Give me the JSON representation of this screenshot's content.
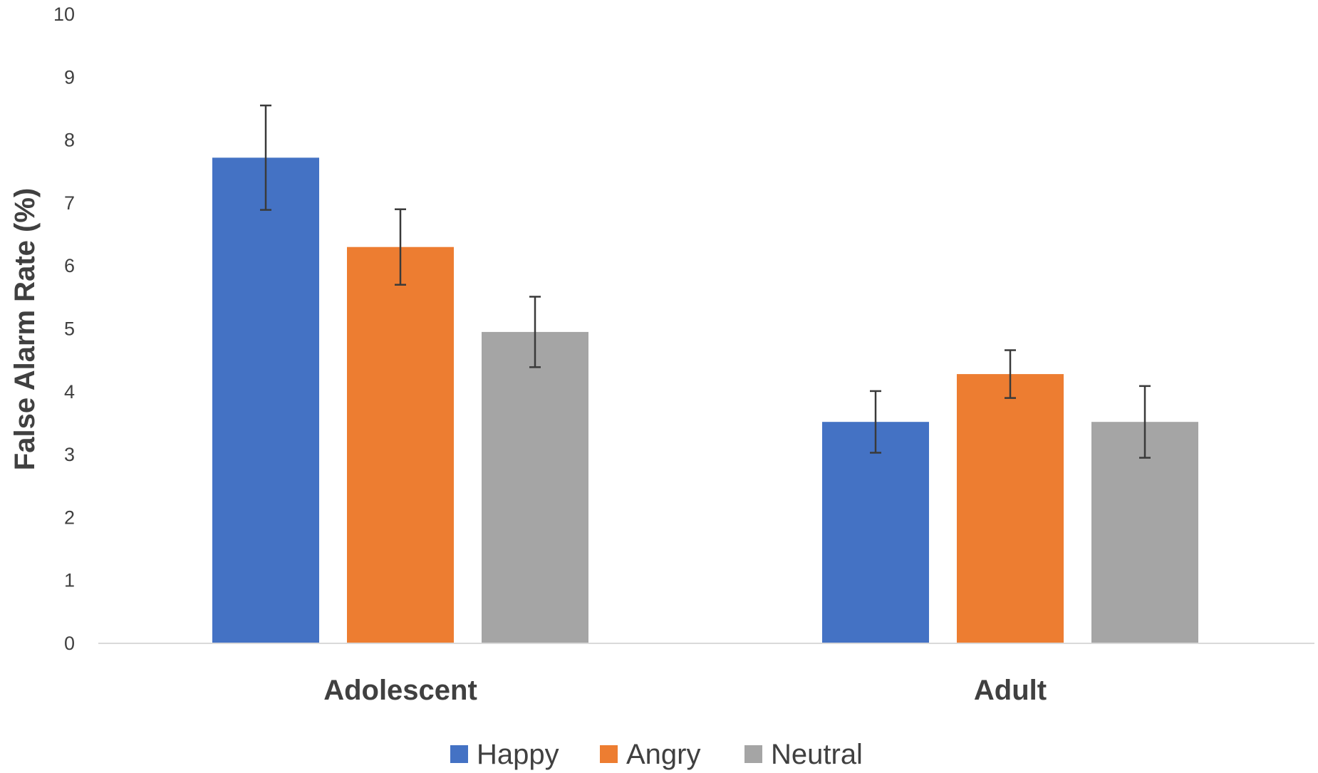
{
  "chart_data": {
    "type": "bar",
    "title": "",
    "xlabel": "",
    "ylabel": "False Alarm Rate (%)",
    "ylim": [
      0,
      10
    ],
    "yticks": [
      "0",
      "1",
      "2",
      "3",
      "4",
      "5",
      "6",
      "7",
      "8",
      "9",
      "10"
    ],
    "grid": false,
    "legend_position": "bottom",
    "categories": [
      "Adolescent",
      "Adult"
    ],
    "series": [
      {
        "name": "Happy",
        "color": "#4472C4",
        "values": [
          7.72,
          3.52
        ],
        "errors": [
          0.83,
          0.49
        ]
      },
      {
        "name": "Angry",
        "color": "#ED7D31",
        "values": [
          6.3,
          4.28
        ],
        "errors": [
          0.6,
          0.38
        ]
      },
      {
        "name": "Neutral",
        "color": "#A5A5A5",
        "values": [
          4.95,
          3.52
        ],
        "errors": [
          0.56,
          0.57
        ]
      }
    ]
  }
}
